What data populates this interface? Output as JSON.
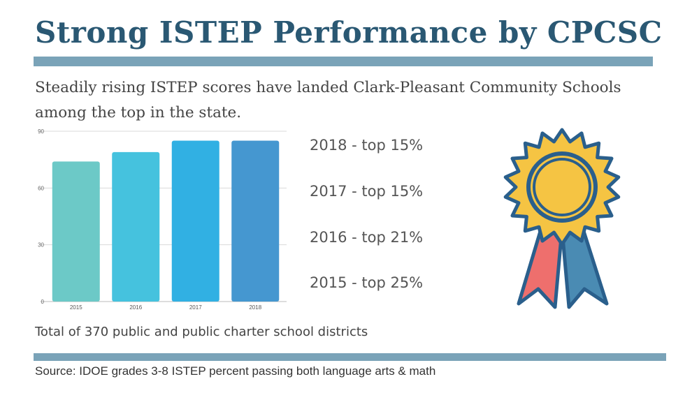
{
  "title": "Strong ISTEP Performance by CPCSC",
  "subtitle": "Steadily rising ISTEP scores have landed Clark-Pleasant Community Schools among the top in the state.",
  "rankings": [
    "2018 - top 15%",
    "2017 - top 15%",
    "2016 - top 21%",
    "2015 - top 25%"
  ],
  "total_note": "Total of 370 public and public charter school districts",
  "source": "Source: IDOE grades 3-8 ISTEP percent passing both language arts & math",
  "icons": {
    "award": "award-ribbon-icon"
  },
  "colors": {
    "title": "#2a5873",
    "rule": "#7aa3b8",
    "medal_outer": "#f5c443",
    "medal_outline": "#2a5f8c",
    "ribbon_left": "#ee6f6d",
    "ribbon_right": "#4a8bb3"
  },
  "chart_data": {
    "type": "bar",
    "categories": [
      "2015",
      "2016",
      "2017",
      "2018"
    ],
    "values": [
      74,
      79,
      85,
      85
    ],
    "bar_colors": [
      "#6cc9c7",
      "#45c2de",
      "#31b0e3",
      "#4597d0"
    ],
    "yticks": [
      0,
      30,
      60,
      90
    ],
    "ylim": [
      0,
      90
    ],
    "grid": true,
    "legend": "none"
  }
}
